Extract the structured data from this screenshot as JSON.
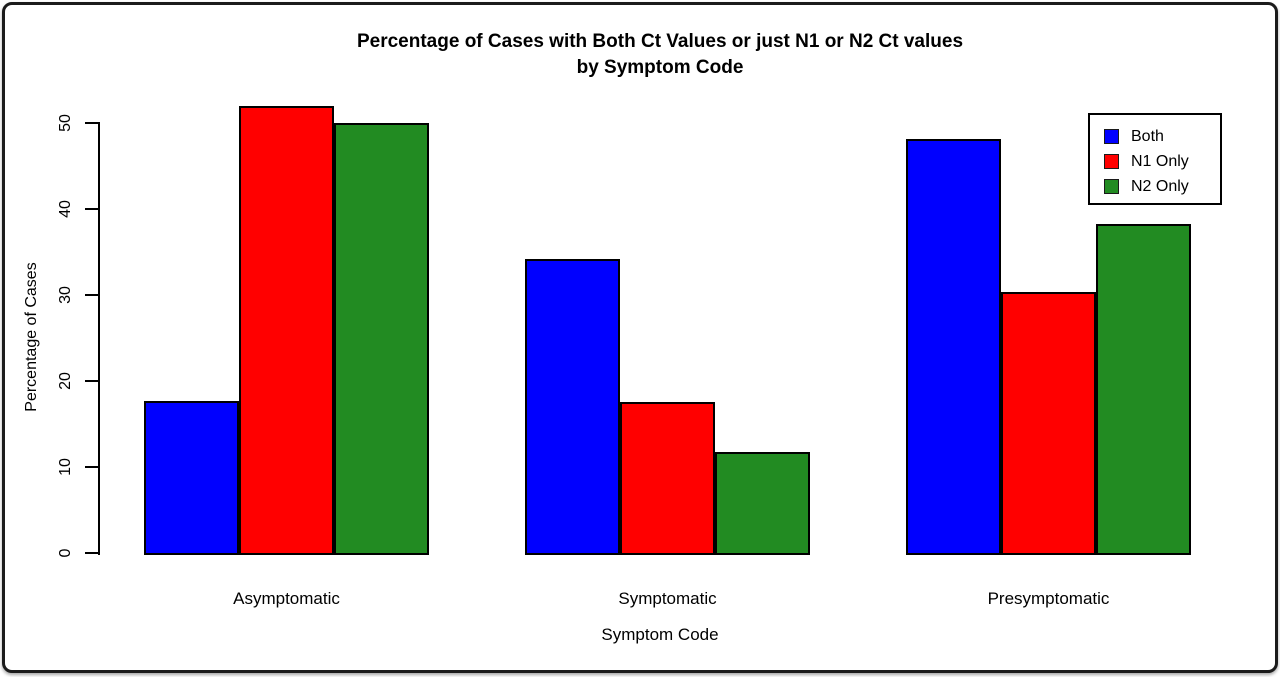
{
  "frame": {
    "background": "#ffffff",
    "border_color": "#1b1b1b"
  },
  "chart_data": {
    "type": "bar",
    "title_line1": "Percentage of Cases with Both Ct Values or just N1 or N2 Ct values",
    "title_line2": "by Symptom Code",
    "xlabel": "Symptom Code",
    "ylabel": "Percentage of Cases",
    "categories": [
      "Asymptomatic",
      "Symptomatic",
      "Presymptomatic"
    ],
    "series": [
      {
        "name": "Both",
        "color": "#0000ff",
        "values": [
          17.7,
          34.2,
          48.1
        ]
      },
      {
        "name": "N1 Only",
        "color": "#ff0000",
        "values": [
          52.0,
          17.6,
          30.4
        ]
      },
      {
        "name": "N2 Only",
        "color": "#228b22",
        "values": [
          50.0,
          11.8,
          38.2
        ]
      }
    ],
    "y_ticks": [
      0,
      10,
      20,
      30,
      40,
      50
    ],
    "ylim": [
      0,
      52.5
    ],
    "grid": false,
    "legend_position": "top-right",
    "bar_border_color": "#000000",
    "axis_color": "#000000"
  }
}
